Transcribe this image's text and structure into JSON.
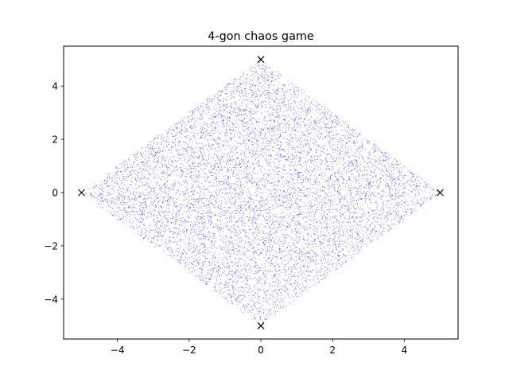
{
  "chart_data": {
    "type": "scatter",
    "title": "4-gon chaos game",
    "xlabel": "",
    "ylabel": "",
    "xlim": [
      -5.5,
      5.5
    ],
    "ylim": [
      -5.5,
      5.5
    ],
    "x_ticks": [
      -4,
      -2,
      0,
      2,
      4
    ],
    "y_ticks": [
      -4,
      -2,
      0,
      2,
      4
    ],
    "x_tick_labels": [
      "−4",
      "−2",
      "0",
      "2",
      "4"
    ],
    "y_tick_labels": [
      "−4",
      "−2",
      "0",
      "2",
      "4"
    ],
    "grid": false,
    "series": [
      {
        "kind": "points",
        "region": "square with vertices (0,5), (5,0), (0,-5), (-5,0)",
        "color": "#0000ff",
        "marker": "dot"
      },
      {
        "kind": "vertices",
        "marker": "x",
        "color": "#000000",
        "x": [
          0,
          5,
          0,
          -5
        ],
        "y": [
          5,
          0,
          -5,
          0
        ]
      }
    ]
  }
}
